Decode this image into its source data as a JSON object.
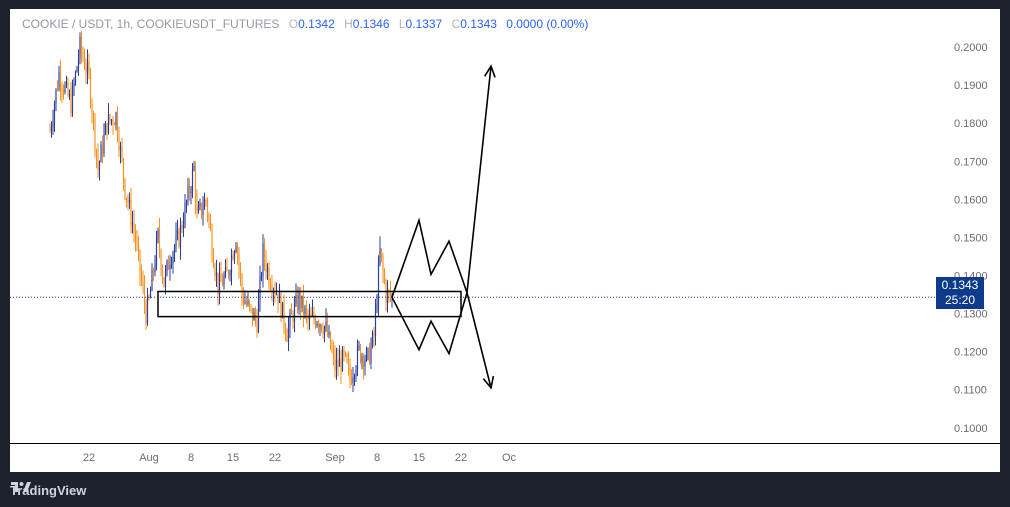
{
  "legend": {
    "symbol": "COOKIE / USDT, 1h, COOKIEUSDT_FUTURES",
    "o_label": "O",
    "o": "0.1342",
    "h_label": "H",
    "h": "0.1346",
    "l_label": "L",
    "l": "0.1337",
    "c_label": "C",
    "c": "0.1343",
    "change": "0.0000 (0.00%)"
  },
  "price_badge": {
    "price": "0.1343",
    "countdown": "25:20"
  },
  "footer": {
    "brand": "TradingView"
  },
  "colors": {
    "up": "#2b3fa0",
    "down": "#f7931e",
    "badge": "#0e3a8c",
    "line": "#000000"
  },
  "chart_data": {
    "type": "line",
    "title": "COOKIE / USDT, 1h, COOKIEUSDT_FUTURES",
    "ylim": [
      0.096,
      0.21
    ],
    "y_ticks": [
      "0.2000",
      "0.1900",
      "0.1800",
      "0.1700",
      "0.1600",
      "0.1500",
      "0.1400",
      "0.1300",
      "0.1200",
      "0.1100",
      "0.1000"
    ],
    "y_tick_values": [
      0.2,
      0.19,
      0.18,
      0.17,
      0.16,
      0.15,
      0.14,
      0.13,
      0.12,
      0.11,
      0.1
    ],
    "x_ticks": [
      "22",
      "Aug",
      "8",
      "15",
      "22",
      "Sep",
      "8",
      "15",
      "22",
      "Oc"
    ],
    "x_tick_day_index": [
      0,
      10,
      17,
      24,
      31,
      41,
      48,
      55,
      62,
      70
    ],
    "series": [
      {
        "name": "COOKIEUSDT price (approx.)",
        "day_index": [
          -6.5,
          -5,
          -3,
          -1.5,
          0,
          1.5,
          3,
          4.5,
          6,
          7.5,
          9.5,
          10,
          11.5,
          12.5,
          13.5,
          15,
          17.5,
          18,
          19.5,
          20.5,
          21.5,
          23,
          24.5,
          25.5,
          27,
          28,
          29,
          30,
          31.5,
          33,
          34,
          35,
          36.5,
          38,
          39.5,
          41,
          42.5,
          43.5,
          45,
          46.5,
          47.5,
          48.5,
          49.5,
          50.5
        ],
        "values": [
          0.178,
          0.193,
          0.185,
          0.2,
          0.192,
          0.168,
          0.18,
          0.182,
          0.163,
          0.152,
          0.13,
          0.133,
          0.15,
          0.138,
          0.145,
          0.15,
          0.168,
          0.155,
          0.16,
          0.148,
          0.137,
          0.14,
          0.15,
          0.135,
          0.13,
          0.128,
          0.146,
          0.14,
          0.135,
          0.125,
          0.13,
          0.134,
          0.128,
          0.129,
          0.126,
          0.116,
          0.118,
          0.113,
          0.12,
          0.118,
          0.124,
          0.146,
          0.135,
          0.1343
        ]
      }
    ],
    "zone": {
      "y_low": 0.1292,
      "y_high": 0.1358,
      "x_start_day": 11.5,
      "x_end_day": 62
    },
    "projection_up_path": [
      [
        50.5,
        0.1343
      ],
      [
        55,
        0.1545
      ],
      [
        57,
        0.1403
      ],
      [
        60,
        0.149
      ],
      [
        63,
        0.1355
      ],
      [
        67,
        0.195
      ]
    ],
    "projection_down_path": [
      [
        50.5,
        0.1343
      ],
      [
        55,
        0.1205
      ],
      [
        57,
        0.128
      ],
      [
        60,
        0.1195
      ],
      [
        63,
        0.1355
      ],
      [
        67,
        0.1105
      ]
    ],
    "current_price": 0.1343
  }
}
